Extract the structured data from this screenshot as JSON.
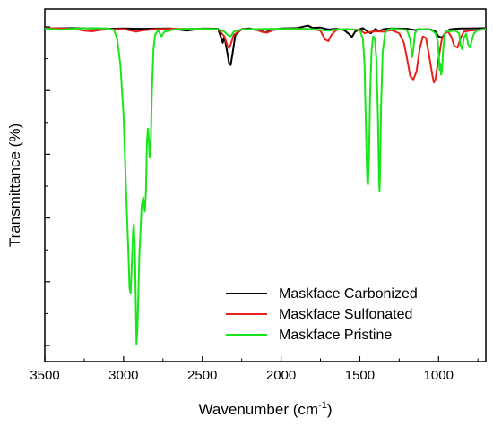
{
  "chart_data": {
    "type": "line",
    "xlabel": "Wavenumber (cm",
    "xlabel_sup": "-1",
    "xlabel_end": ")",
    "ylabel": "Transmittance (%)",
    "xlim": [
      3500,
      700
    ],
    "x_reversed": true,
    "ylim": [
      0,
      100
    ],
    "y_tick_labels_shown": false,
    "xticks": [
      3500,
      3000,
      2500,
      2000,
      1500,
      1000
    ],
    "legend_position": "lower-right",
    "series": [
      {
        "name": "Maskface Carbonized",
        "color": "#000000",
        "points": [
          [
            3500,
            99.5
          ],
          [
            3300,
            99.6
          ],
          [
            3100,
            99.4
          ],
          [
            3000,
            99.5
          ],
          [
            2900,
            99.4
          ],
          [
            2700,
            99.5
          ],
          [
            2600,
            98.8
          ],
          [
            2500,
            99.5
          ],
          [
            2400,
            99.4
          ],
          [
            2370,
            95.0
          ],
          [
            2360,
            97.0
          ],
          [
            2340,
            91.5
          ],
          [
            2330,
            88.5
          ],
          [
            2320,
            88.0
          ],
          [
            2310,
            91.0
          ],
          [
            2290,
            97.5
          ],
          [
            2250,
            99.3
          ],
          [
            2200,
            99.5
          ],
          [
            2150,
            99.0
          ],
          [
            2100,
            98.3
          ],
          [
            2050,
            99.1
          ],
          [
            2000,
            99.5
          ],
          [
            1900,
            99.6
          ],
          [
            1830,
            100.4
          ],
          [
            1800,
            99.7
          ],
          [
            1750,
            99.8
          ],
          [
            1700,
            99.2
          ],
          [
            1650,
            99.4
          ],
          [
            1600,
            99.0
          ],
          [
            1570,
            97.8
          ],
          [
            1550,
            96.8
          ],
          [
            1530,
            98.5
          ],
          [
            1500,
            99.3
          ],
          [
            1480,
            99.6
          ],
          [
            1450,
            98.5
          ],
          [
            1430,
            98.0
          ],
          [
            1400,
            99.4
          ],
          [
            1380,
            98.6
          ],
          [
            1350,
            99.3
          ],
          [
            1300,
            99.5
          ],
          [
            1200,
            99.4
          ],
          [
            1150,
            99.0
          ],
          [
            1100,
            99.3
          ],
          [
            1050,
            99.2
          ],
          [
            1020,
            98.5
          ],
          [
            1000,
            97.0
          ],
          [
            980,
            96.6
          ],
          [
            960,
            97.8
          ],
          [
            930,
            99.2
          ],
          [
            900,
            99.4
          ],
          [
            860,
            99.5
          ],
          [
            800,
            99.5
          ],
          [
            700,
            99.6
          ]
        ]
      },
      {
        "name": "Maskface Sulfonated",
        "color": "#e8211d",
        "points": [
          [
            3500,
            99.6
          ],
          [
            3400,
            99.5
          ],
          [
            3300,
            99.3
          ],
          [
            3250,
            98.8
          ],
          [
            3200,
            98.6
          ],
          [
            3150,
            99.0
          ],
          [
            3100,
            99.2
          ],
          [
            3000,
            99.3
          ],
          [
            2950,
            98.8
          ],
          [
            2920,
            98.5
          ],
          [
            2880,
            98.9
          ],
          [
            2850,
            99.0
          ],
          [
            2800,
            99.3
          ],
          [
            2700,
            99.4
          ],
          [
            2600,
            99.4
          ],
          [
            2500,
            99.4
          ],
          [
            2400,
            99.3
          ],
          [
            2360,
            97.0
          ],
          [
            2340,
            94.0
          ],
          [
            2330,
            93.3
          ],
          [
            2320,
            94.5
          ],
          [
            2300,
            97.5
          ],
          [
            2250,
            99.2
          ],
          [
            2200,
            99.3
          ],
          [
            2150,
            99.0
          ],
          [
            2120,
            98.4
          ],
          [
            2090,
            98.2
          ],
          [
            2050,
            99.0
          ],
          [
            2000,
            99.3
          ],
          [
            1900,
            99.4
          ],
          [
            1800,
            99.3
          ],
          [
            1750,
            98.8
          ],
          [
            1720,
            96.0
          ],
          [
            1700,
            95.5
          ],
          [
            1680,
            97.5
          ],
          [
            1650,
            99.0
          ],
          [
            1600,
            99.3
          ],
          [
            1500,
            99.1
          ],
          [
            1470,
            98.0
          ],
          [
            1450,
            98.3
          ],
          [
            1400,
            98.6
          ],
          [
            1350,
            98.5
          ],
          [
            1300,
            99.0
          ],
          [
            1250,
            98.0
          ],
          [
            1220,
            95.0
          ],
          [
            1200,
            90.0
          ],
          [
            1180,
            84.5
          ],
          [
            1160,
            83.5
          ],
          [
            1140,
            86.0
          ],
          [
            1120,
            93.0
          ],
          [
            1100,
            97.0
          ],
          [
            1080,
            96.5
          ],
          [
            1060,
            91.0
          ],
          [
            1040,
            85.0
          ],
          [
            1030,
            82.5
          ],
          [
            1020,
            83.5
          ],
          [
            1000,
            90.0
          ],
          [
            980,
            96.0
          ],
          [
            960,
            98.0
          ],
          [
            940,
            98.5
          ],
          [
            920,
            97.0
          ],
          [
            900,
            94.0
          ],
          [
            880,
            93.5
          ],
          [
            860,
            96.5
          ],
          [
            840,
            98.5
          ],
          [
            800,
            98.8
          ],
          [
            750,
            99.0
          ],
          [
            700,
            99.2
          ]
        ]
      },
      {
        "name": "Maskface Pristine",
        "color": "#19e61a",
        "points": [
          [
            3500,
            99.5
          ],
          [
            3450,
            99.3
          ],
          [
            3400,
            99.1
          ],
          [
            3350,
            99.3
          ],
          [
            3300,
            99.5
          ],
          [
            3200,
            99.6
          ],
          [
            3100,
            99.5
          ],
          [
            3060,
            99.0
          ],
          [
            3040,
            96.0
          ],
          [
            3020,
            88.0
          ],
          [
            3000,
            72.0
          ],
          [
            2985,
            50.0
          ],
          [
            2970,
            30.0
          ],
          [
            2962,
            18.0
          ],
          [
            2955,
            16.5
          ],
          [
            2948,
            25.0
          ],
          [
            2940,
            36.0
          ],
          [
            2935,
            38.0
          ],
          [
            2928,
            30.0
          ],
          [
            2922,
            12.0
          ],
          [
            2918,
            0.5
          ],
          [
            2912,
            5.0
          ],
          [
            2900,
            28.0
          ],
          [
            2885,
            44.0
          ],
          [
            2875,
            46.5
          ],
          [
            2865,
            42.0
          ],
          [
            2858,
            48.0
          ],
          [
            2852,
            63.0
          ],
          [
            2846,
            68.0
          ],
          [
            2840,
            65.0
          ],
          [
            2835,
            59.0
          ],
          [
            2828,
            62.0
          ],
          [
            2820,
            80.0
          ],
          [
            2810,
            93.0
          ],
          [
            2800,
            97.5
          ],
          [
            2780,
            99.0
          ],
          [
            2760,
            97.0
          ],
          [
            2740,
            98.5
          ],
          [
            2720,
            98.7
          ],
          [
            2700,
            99.0
          ],
          [
            2650,
            99.3
          ],
          [
            2600,
            99.4
          ],
          [
            2500,
            99.4
          ],
          [
            2400,
            99.3
          ],
          [
            2360,
            98.5
          ],
          [
            2340,
            97.5
          ],
          [
            2320,
            97.0
          ],
          [
            2300,
            98.5
          ],
          [
            2250,
            99.2
          ],
          [
            2200,
            99.3
          ],
          [
            2000,
            99.4
          ],
          [
            1800,
            99.3
          ],
          [
            1750,
            99.0
          ],
          [
            1700,
            98.8
          ],
          [
            1650,
            99.2
          ],
          [
            1600,
            99.3
          ],
          [
            1550,
            99.2
          ],
          [
            1500,
            99.0
          ],
          [
            1480,
            96.0
          ],
          [
            1470,
            88.0
          ],
          [
            1462,
            70.0
          ],
          [
            1456,
            57.0
          ],
          [
            1452,
            51.0
          ],
          [
            1448,
            50.5
          ],
          [
            1442,
            58.0
          ],
          [
            1435,
            78.0
          ],
          [
            1425,
            93.0
          ],
          [
            1415,
            97.0
          ],
          [
            1405,
            96.5
          ],
          [
            1395,
            90.0
          ],
          [
            1385,
            72.0
          ],
          [
            1378,
            52.0
          ],
          [
            1375,
            48.5
          ],
          [
            1372,
            53.0
          ],
          [
            1365,
            75.0
          ],
          [
            1355,
            92.0
          ],
          [
            1340,
            98.0
          ],
          [
            1320,
            99.2
          ],
          [
            1300,
            99.4
          ],
          [
            1250,
            99.3
          ],
          [
            1200,
            99.0
          ],
          [
            1180,
            96.0
          ],
          [
            1168,
            90.5
          ],
          [
            1160,
            93.0
          ],
          [
            1150,
            98.0
          ],
          [
            1130,
            99.4
          ],
          [
            1100,
            99.3
          ],
          [
            1050,
            99.1
          ],
          [
            1020,
            98.0
          ],
          [
            1005,
            95.5
          ],
          [
            997,
            90.0
          ],
          [
            993,
            86.5
          ],
          [
            989,
            88.5
          ],
          [
            984,
            85.0
          ],
          [
            978,
            86.0
          ],
          [
            972,
            92.0
          ],
          [
            962,
            97.5
          ],
          [
            950,
            98.8
          ],
          [
            930,
            98.5
          ],
          [
            900,
            99.0
          ],
          [
            870,
            98.0
          ],
          [
            860,
            94.0
          ],
          [
            850,
            93.0
          ],
          [
            840,
            96.5
          ],
          [
            825,
            97.8
          ],
          [
            812,
            94.5
          ],
          [
            800,
            93.5
          ],
          [
            790,
            95.5
          ],
          [
            775,
            98.0
          ],
          [
            750,
            99.0
          ],
          [
            700,
            99.4
          ]
        ]
      }
    ]
  }
}
